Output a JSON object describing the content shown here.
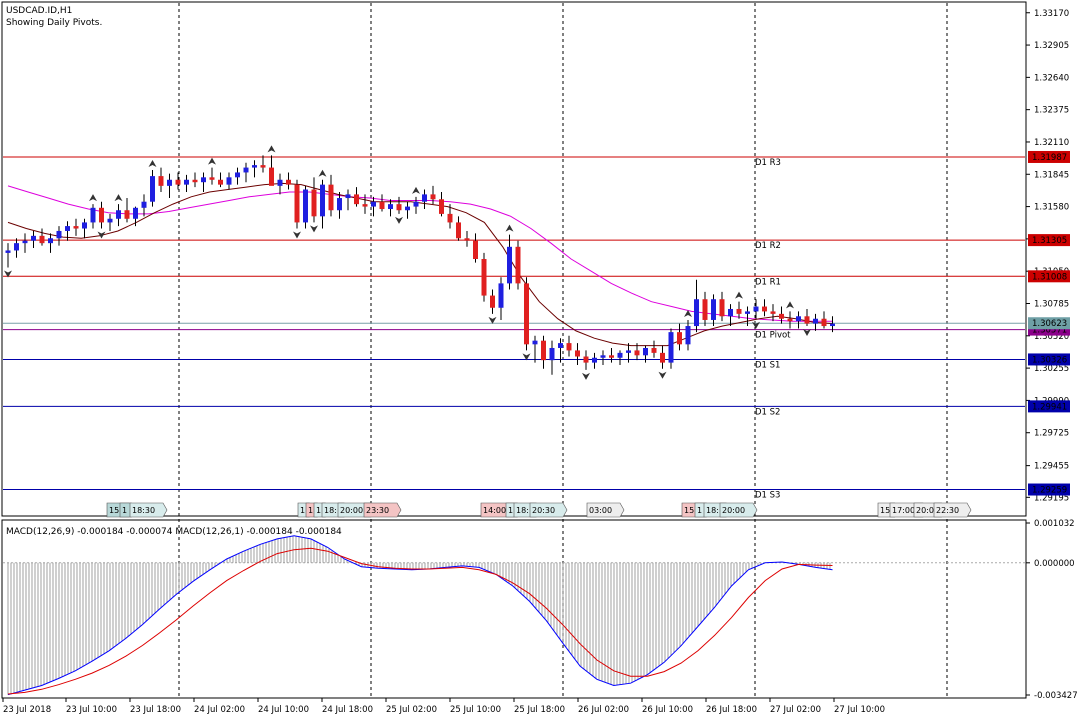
{
  "header": {
    "symbol": "USDCAD.ID,H1",
    "subtitle": "Showing Daily Pivots."
  },
  "colors": {
    "bull": "#1f1fe0",
    "bear": "#e02020",
    "resistance": "#cc0000",
    "support": "#0000aa",
    "pivot": "#8b008b",
    "ma_slow": "#dd00dd",
    "ma_fast": "#6b0000",
    "macd_line": "#0000ff",
    "signal_line": "#dd0000"
  },
  "chart_data": [
    {
      "type": "candlestick",
      "title": "USDCAD.ID,H1",
      "subtitle": "Showing Daily Pivots.",
      "ylim": [
        1.2905,
        1.3325
      ],
      "y_ticks": [
        "1.33170",
        "1.32905",
        "1.32640",
        "1.32375",
        "1.32110",
        "1.31845",
        "1.31580",
        "1.31315",
        "1.31050",
        "1.30785",
        "1.30520",
        "1.30255",
        "1.29990",
        "1.29725",
        "1.29455",
        "1.29195"
      ],
      "x_labels": [
        "23 Jul 2018",
        "23 Jul 10:00",
        "23 Jul 18:00",
        "24 Jul 02:00",
        "24 Jul 10:00",
        "24 Jul 18:00",
        "25 Jul 02:00",
        "25 Jul 10:00",
        "25 Jul 18:00",
        "26 Jul 02:00",
        "26 Jul 10:00",
        "26 Jul 18:00",
        "27 Jul 02:00",
        "27 Jul 10:00"
      ],
      "pivot_levels": [
        {
          "name": "D1 R3",
          "price": "1.31987",
          "value": 1.31987,
          "kind": "resistance"
        },
        {
          "name": "D1 R2",
          "price": "1.31305",
          "value": 1.31305,
          "kind": "resistance"
        },
        {
          "name": "D1 R1",
          "price": "1.31008",
          "value": 1.31008,
          "kind": "resistance"
        },
        {
          "name": "D1 Pivot",
          "price": "1.30571",
          "value": 1.30571,
          "kind": "pivot"
        },
        {
          "name": "D1 S1",
          "price": "1.30326",
          "value": 1.30326,
          "kind": "support"
        },
        {
          "name": "D1 S2",
          "price": "1.29941",
          "value": 1.29941,
          "kind": "support"
        },
        {
          "name": "D1 S3",
          "price": "1.29259",
          "value": 1.29259,
          "kind": "support"
        }
      ],
      "current_price": {
        "price": "1.30623",
        "value": 1.30623
      },
      "candles": [
        [
          1.312,
          1.3128,
          1.3108,
          1.3122
        ],
        [
          1.3122,
          1.3132,
          1.3116,
          1.3128
        ],
        [
          1.3128,
          1.3136,
          1.312,
          1.313
        ],
        [
          1.313,
          1.3138,
          1.3124,
          1.3134
        ],
        [
          1.3134,
          1.314,
          1.3126,
          1.3128
        ],
        [
          1.3128,
          1.3136,
          1.312,
          1.3132
        ],
        [
          1.3132,
          1.3142,
          1.3126,
          1.3138
        ],
        [
          1.3138,
          1.3146,
          1.313,
          1.3142
        ],
        [
          1.3142,
          1.3148,
          1.3134,
          1.314
        ],
        [
          1.314,
          1.3148,
          1.3132,
          1.3145
        ],
        [
          1.3145,
          1.316,
          1.314,
          1.3157
        ],
        [
          1.3157,
          1.3162,
          1.314,
          1.3145
        ],
        [
          1.3145,
          1.3152,
          1.3138,
          1.3148
        ],
        [
          1.3148,
          1.316,
          1.3142,
          1.3155
        ],
        [
          1.3155,
          1.3165,
          1.3145,
          1.3148
        ],
        [
          1.3148,
          1.3158,
          1.3142,
          1.3157
        ],
        [
          1.3157,
          1.3168,
          1.315,
          1.3162
        ],
        [
          1.3162,
          1.3188,
          1.3158,
          1.3183
        ],
        [
          1.3183,
          1.319,
          1.317,
          1.3175
        ],
        [
          1.3175,
          1.3185,
          1.3165,
          1.318
        ],
        [
          1.318,
          1.3186,
          1.3172,
          1.3176
        ],
        [
          1.3176,
          1.3184,
          1.317,
          1.318
        ],
        [
          1.318,
          1.3186,
          1.3174,
          1.3178
        ],
        [
          1.3178,
          1.3186,
          1.317,
          1.3182
        ],
        [
          1.3182,
          1.319,
          1.3176,
          1.318
        ],
        [
          1.318,
          1.3186,
          1.3174,
          1.3176
        ],
        [
          1.3176,
          1.3186,
          1.3172,
          1.3182
        ],
        [
          1.3182,
          1.319,
          1.3176,
          1.3186
        ],
        [
          1.3186,
          1.3194,
          1.3178,
          1.319
        ],
        [
          1.319,
          1.3196,
          1.3182,
          1.3192
        ],
        [
          1.3192,
          1.32,
          1.3186,
          1.319
        ],
        [
          1.319,
          1.32,
          1.3178,
          1.3175
        ],
        [
          1.3175,
          1.3185,
          1.3168,
          1.318
        ],
        [
          1.318,
          1.3186,
          1.3172,
          1.3176
        ],
        [
          1.3176,
          1.318,
          1.314,
          1.3145
        ],
        [
          1.3145,
          1.3175,
          1.314,
          1.3172
        ],
        [
          1.3172,
          1.3182,
          1.3145,
          1.315
        ],
        [
          1.315,
          1.318,
          1.314,
          1.3176
        ],
        [
          1.3176,
          1.3184,
          1.315,
          1.3155
        ],
        [
          1.3155,
          1.317,
          1.3148,
          1.3165
        ],
        [
          1.3165,
          1.3172,
          1.3155,
          1.3168
        ],
        [
          1.3168,
          1.3174,
          1.3158,
          1.316
        ],
        [
          1.316,
          1.3168,
          1.3152,
          1.3158
        ],
        [
          1.3158,
          1.3166,
          1.315,
          1.3162
        ],
        [
          1.3162,
          1.3168,
          1.3154,
          1.3156
        ],
        [
          1.3156,
          1.3164,
          1.315,
          1.316
        ],
        [
          1.316,
          1.3166,
          1.3152,
          1.3155
        ],
        [
          1.3155,
          1.3162,
          1.3148,
          1.3158
        ],
        [
          1.3158,
          1.3166,
          1.3152,
          1.3162
        ],
        [
          1.3162,
          1.3172,
          1.3156,
          1.3168
        ],
        [
          1.3168,
          1.3175,
          1.316,
          1.3164
        ],
        [
          1.3164,
          1.317,
          1.315,
          1.3152
        ],
        [
          1.3152,
          1.316,
          1.314,
          1.3145
        ],
        [
          1.3145,
          1.315,
          1.313,
          1.3132
        ],
        [
          1.3132,
          1.3138,
          1.3125,
          1.313
        ],
        [
          1.313,
          1.3136,
          1.3112,
          1.3115
        ],
        [
          1.3115,
          1.312,
          1.308,
          1.3085
        ],
        [
          1.3085,
          1.309,
          1.307,
          1.3075
        ],
        [
          1.3075,
          1.31,
          1.3065,
          1.3095
        ],
        [
          1.3095,
          1.3135,
          1.309,
          1.3125
        ],
        [
          1.3125,
          1.313,
          1.309,
          1.3095
        ],
        [
          1.3095,
          1.31,
          1.304,
          1.3045
        ],
        [
          1.3045,
          1.3052,
          1.303,
          1.3048
        ],
        [
          1.3048,
          1.3052,
          1.3025,
          1.3032
        ],
        [
          1.3032,
          1.3048,
          1.302,
          1.3042
        ],
        [
          1.3042,
          1.305,
          1.303,
          1.3046
        ],
        [
          1.3046,
          1.3052,
          1.3035,
          1.304
        ],
        [
          1.304,
          1.3046,
          1.3028,
          1.3035
        ],
        [
          1.3035,
          1.304,
          1.3024,
          1.303
        ],
        [
          1.303,
          1.3038,
          1.3025,
          1.3034
        ],
        [
          1.3034,
          1.304,
          1.3028,
          1.3036
        ],
        [
          1.3036,
          1.3042,
          1.303,
          1.3034
        ],
        [
          1.3034,
          1.304,
          1.3028,
          1.3038
        ],
        [
          1.3038,
          1.3046,
          1.303,
          1.304
        ],
        [
          1.304,
          1.3046,
          1.3032,
          1.3036
        ],
        [
          1.3036,
          1.3044,
          1.303,
          1.3042
        ],
        [
          1.3042,
          1.3048,
          1.3034,
          1.3038
        ],
        [
          1.3038,
          1.3044,
          1.3025,
          1.303
        ],
        [
          1.303,
          1.3058,
          1.3025,
          1.3055
        ],
        [
          1.3055,
          1.3062,
          1.304,
          1.3045
        ],
        [
          1.3045,
          1.3065,
          1.304,
          1.306
        ],
        [
          1.306,
          1.3098,
          1.3055,
          1.3082
        ],
        [
          1.3082,
          1.3088,
          1.306,
          1.3065
        ],
        [
          1.3065,
          1.3086,
          1.306,
          1.3082
        ],
        [
          1.3082,
          1.3088,
          1.3064,
          1.3068
        ],
        [
          1.3068,
          1.3078,
          1.306,
          1.3074
        ],
        [
          1.3074,
          1.308,
          1.3066,
          1.307
        ],
        [
          1.307,
          1.3076,
          1.306,
          1.3072
        ],
        [
          1.3072,
          1.3082,
          1.3066,
          1.3076
        ],
        [
          1.3076,
          1.3082,
          1.3068,
          1.3072
        ],
        [
          1.3072,
          1.3078,
          1.3064,
          1.307
        ],
        [
          1.307,
          1.3076,
          1.3062,
          1.3066
        ],
        [
          1.3066,
          1.3072,
          1.3058,
          1.3064
        ],
        [
          1.3064,
          1.3072,
          1.3058,
          1.3068
        ],
        [
          1.3068,
          1.3074,
          1.306,
          1.3062
        ],
        [
          1.3062,
          1.307,
          1.3056,
          1.3066
        ],
        [
          1.3066,
          1.3072,
          1.3058,
          1.306
        ],
        [
          1.306,
          1.3068,
          1.3055,
          1.3062
        ]
      ],
      "ma_slow": [
        1.3175,
        1.317,
        1.3165,
        1.316,
        1.3156,
        1.3153,
        1.3152,
        1.3152,
        1.3154,
        1.3157,
        1.316,
        1.3163,
        1.3166,
        1.3168,
        1.317,
        1.317,
        1.3168,
        1.3166,
        1.3165,
        1.3163,
        1.3163,
        1.3163,
        1.3162,
        1.316,
        1.3156,
        1.315,
        1.314,
        1.3128,
        1.3115,
        1.3105,
        1.3095,
        1.3087,
        1.308,
        1.3076,
        1.3072,
        1.307,
        1.3068,
        1.3066,
        1.3065,
        1.3064,
        1.3064,
        1.3064
      ],
      "ma_fast": [
        1.3145,
        1.314,
        1.3136,
        1.3133,
        1.3132,
        1.3134,
        1.3138,
        1.3145,
        1.3153,
        1.316,
        1.3166,
        1.317,
        1.3172,
        1.3174,
        1.3176,
        1.3177,
        1.3176,
        1.3172,
        1.3168,
        1.3165,
        1.3162,
        1.3162,
        1.3162,
        1.316,
        1.3158,
        1.3153,
        1.3145,
        1.3125,
        1.31,
        1.308,
        1.3066,
        1.3056,
        1.305,
        1.3046,
        1.3044,
        1.3044,
        1.3044,
        1.305,
        1.3056,
        1.306,
        1.3063,
        1.3066,
        1.3068,
        1.3066,
        1.3063,
        1.3062
      ]
    },
    {
      "type": "line",
      "title": "MACD(12,26,9) -0.000184 -0.000074 MACD(12,26,1) -0.000184 -0.000184",
      "ylim": [
        -0.003427,
        0.001032
      ],
      "y_ticks": [
        "0.001032",
        "0.000000",
        "-0.003427"
      ],
      "series": [
        {
          "values": [
            -0.00342,
            -0.0033,
            -0.00318,
            -0.003,
            -0.0028,
            -0.00255,
            -0.00228,
            -0.00196,
            -0.0016,
            -0.0012,
            -0.00082,
            -0.00048,
            -0.00018,
            0.0001,
            0.0003,
            0.00048,
            0.00062,
            0.0007,
            0.00062,
            0.0004,
            0.0001,
            -0.0001,
            -0.00014,
            -0.00016,
            -0.00018,
            -0.00016,
            -0.00012,
            -8e-05,
            -0.00012,
            -0.0003,
            -0.0006,
            -0.001,
            -0.0015,
            -0.0021,
            -0.00268,
            -0.00302,
            -0.00318,
            -0.00312,
            -0.0029,
            -0.00258,
            -0.00215,
            -0.00165,
            -0.00115,
            -0.0006,
            -0.00018,
            0.0,
            2e-05,
            -4e-05,
            -0.00012,
            -0.00018
          ]
        },
        {
          "values": [
            -0.0034,
            -0.00336,
            -0.00328,
            -0.00316,
            -0.00302,
            -0.00286,
            -0.00266,
            -0.00242,
            -0.00214,
            -0.00182,
            -0.00148,
            -0.00112,
            -0.00078,
            -0.00046,
            -0.0002,
            4e-05,
            0.00024,
            0.00034,
            0.00038,
            0.0003,
            0.00014,
            -2e-05,
            -0.0001,
            -0.00014,
            -0.00016,
            -0.00016,
            -0.00014,
            -0.00012,
            -0.00018,
            -0.0003,
            -0.00052,
            -0.0008,
            -0.00118,
            -0.00162,
            -0.0021,
            -0.00252,
            -0.0028,
            -0.00294,
            -0.00294,
            -0.00282,
            -0.0026,
            -0.00228,
            -0.00188,
            -0.00142,
            -0.0009,
            -0.00046,
            -0.00016,
            -4e-05,
            -6e-05,
            -7e-05
          ]
        }
      ]
    }
  ]
}
